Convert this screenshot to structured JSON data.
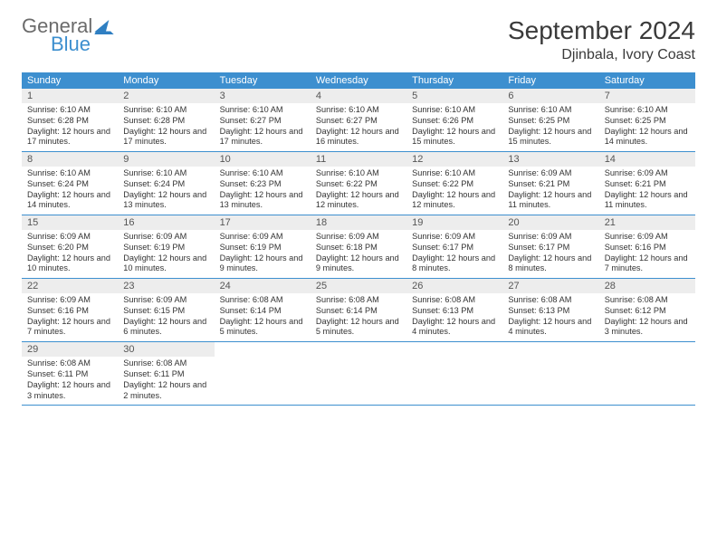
{
  "brand": {
    "part1": "General",
    "part2": "Blue",
    "logo_fill": "#2f7fc2"
  },
  "title": {
    "month": "September 2024",
    "location": "Djinbala, Ivory Coast"
  },
  "colors": {
    "header_bg": "#3d8fcf",
    "header_text": "#ffffff",
    "daynum_bg": "#ededed",
    "week_border": "#3d8fcf"
  },
  "typography": {
    "title_fontsize_pt": 21,
    "location_fontsize_pt": 12,
    "dayhead_fontsize_pt": 8,
    "daynum_fontsize_pt": 8,
    "body_fontsize_pt": 7
  },
  "structure": "calendar_month",
  "day_headers": [
    "Sunday",
    "Monday",
    "Tuesday",
    "Wednesday",
    "Thursday",
    "Friday",
    "Saturday"
  ],
  "days": [
    {
      "n": 1,
      "sunrise": "6:10 AM",
      "sunset": "6:28 PM",
      "daylight": "12 hours and 17 minutes."
    },
    {
      "n": 2,
      "sunrise": "6:10 AM",
      "sunset": "6:28 PM",
      "daylight": "12 hours and 17 minutes."
    },
    {
      "n": 3,
      "sunrise": "6:10 AM",
      "sunset": "6:27 PM",
      "daylight": "12 hours and 17 minutes."
    },
    {
      "n": 4,
      "sunrise": "6:10 AM",
      "sunset": "6:27 PM",
      "daylight": "12 hours and 16 minutes."
    },
    {
      "n": 5,
      "sunrise": "6:10 AM",
      "sunset": "6:26 PM",
      "daylight": "12 hours and 15 minutes."
    },
    {
      "n": 6,
      "sunrise": "6:10 AM",
      "sunset": "6:25 PM",
      "daylight": "12 hours and 15 minutes."
    },
    {
      "n": 7,
      "sunrise": "6:10 AM",
      "sunset": "6:25 PM",
      "daylight": "12 hours and 14 minutes."
    },
    {
      "n": 8,
      "sunrise": "6:10 AM",
      "sunset": "6:24 PM",
      "daylight": "12 hours and 14 minutes."
    },
    {
      "n": 9,
      "sunrise": "6:10 AM",
      "sunset": "6:24 PM",
      "daylight": "12 hours and 13 minutes."
    },
    {
      "n": 10,
      "sunrise": "6:10 AM",
      "sunset": "6:23 PM",
      "daylight": "12 hours and 13 minutes."
    },
    {
      "n": 11,
      "sunrise": "6:10 AM",
      "sunset": "6:22 PM",
      "daylight": "12 hours and 12 minutes."
    },
    {
      "n": 12,
      "sunrise": "6:10 AM",
      "sunset": "6:22 PM",
      "daylight": "12 hours and 12 minutes."
    },
    {
      "n": 13,
      "sunrise": "6:09 AM",
      "sunset": "6:21 PM",
      "daylight": "12 hours and 11 minutes."
    },
    {
      "n": 14,
      "sunrise": "6:09 AM",
      "sunset": "6:21 PM",
      "daylight": "12 hours and 11 minutes."
    },
    {
      "n": 15,
      "sunrise": "6:09 AM",
      "sunset": "6:20 PM",
      "daylight": "12 hours and 10 minutes."
    },
    {
      "n": 16,
      "sunrise": "6:09 AM",
      "sunset": "6:19 PM",
      "daylight": "12 hours and 10 minutes."
    },
    {
      "n": 17,
      "sunrise": "6:09 AM",
      "sunset": "6:19 PM",
      "daylight": "12 hours and 9 minutes."
    },
    {
      "n": 18,
      "sunrise": "6:09 AM",
      "sunset": "6:18 PM",
      "daylight": "12 hours and 9 minutes."
    },
    {
      "n": 19,
      "sunrise": "6:09 AM",
      "sunset": "6:17 PM",
      "daylight": "12 hours and 8 minutes."
    },
    {
      "n": 20,
      "sunrise": "6:09 AM",
      "sunset": "6:17 PM",
      "daylight": "12 hours and 8 minutes."
    },
    {
      "n": 21,
      "sunrise": "6:09 AM",
      "sunset": "6:16 PM",
      "daylight": "12 hours and 7 minutes."
    },
    {
      "n": 22,
      "sunrise": "6:09 AM",
      "sunset": "6:16 PM",
      "daylight": "12 hours and 7 minutes."
    },
    {
      "n": 23,
      "sunrise": "6:09 AM",
      "sunset": "6:15 PM",
      "daylight": "12 hours and 6 minutes."
    },
    {
      "n": 24,
      "sunrise": "6:08 AM",
      "sunset": "6:14 PM",
      "daylight": "12 hours and 5 minutes."
    },
    {
      "n": 25,
      "sunrise": "6:08 AM",
      "sunset": "6:14 PM",
      "daylight": "12 hours and 5 minutes."
    },
    {
      "n": 26,
      "sunrise": "6:08 AM",
      "sunset": "6:13 PM",
      "daylight": "12 hours and 4 minutes."
    },
    {
      "n": 27,
      "sunrise": "6:08 AM",
      "sunset": "6:13 PM",
      "daylight": "12 hours and 4 minutes."
    },
    {
      "n": 28,
      "sunrise": "6:08 AM",
      "sunset": "6:12 PM",
      "daylight": "12 hours and 3 minutes."
    },
    {
      "n": 29,
      "sunrise": "6:08 AM",
      "sunset": "6:11 PM",
      "daylight": "12 hours and 3 minutes."
    },
    {
      "n": 30,
      "sunrise": "6:08 AM",
      "sunset": "6:11 PM",
      "daylight": "12 hours and 2 minutes."
    }
  ],
  "labels": {
    "sunrise": "Sunrise:",
    "sunset": "Sunset:",
    "daylight": "Daylight:"
  }
}
